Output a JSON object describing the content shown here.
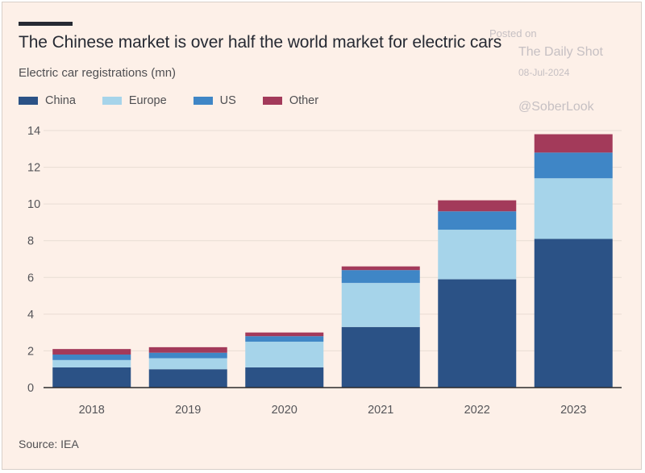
{
  "header": {
    "title": "The Chinese market is over half the world market for electric cars",
    "subtitle": "Electric car registrations (mn)"
  },
  "watermark": {
    "posted": "Posted on",
    "site": "The Daily Shot",
    "date": "08-Jul-2024",
    "handle": "@SoberLook"
  },
  "footer": {
    "source": "Source: IEA"
  },
  "colors": {
    "background": "#fdf0e8",
    "China": "#2b5286",
    "Europe": "#a6d4ea",
    "US": "#3f86c6",
    "Other": "#a33a5a",
    "grid": "#e8ddd4",
    "axis": "#2b2b2b"
  },
  "chart_data": {
    "type": "bar",
    "stacked": true,
    "title": "The Chinese market is over half the world market for electric cars",
    "ylabel": "Electric car registrations (mn)",
    "xlabel": "",
    "categories": [
      "2018",
      "2019",
      "2020",
      "2021",
      "2022",
      "2023"
    ],
    "series": [
      {
        "name": "China",
        "values": [
          1.1,
          1.0,
          1.1,
          3.3,
          5.9,
          8.1
        ]
      },
      {
        "name": "Europe",
        "values": [
          0.4,
          0.6,
          1.4,
          2.4,
          2.7,
          3.3
        ]
      },
      {
        "name": "US",
        "values": [
          0.3,
          0.3,
          0.3,
          0.7,
          1.0,
          1.4
        ]
      },
      {
        "name": "Other",
        "values": [
          0.3,
          0.3,
          0.2,
          0.2,
          0.6,
          1.0
        ]
      }
    ],
    "ylim": [
      0,
      14
    ],
    "yticks": [
      0,
      2,
      4,
      6,
      8,
      10,
      12,
      14
    ],
    "grid": true,
    "legend_position": "top-left"
  }
}
